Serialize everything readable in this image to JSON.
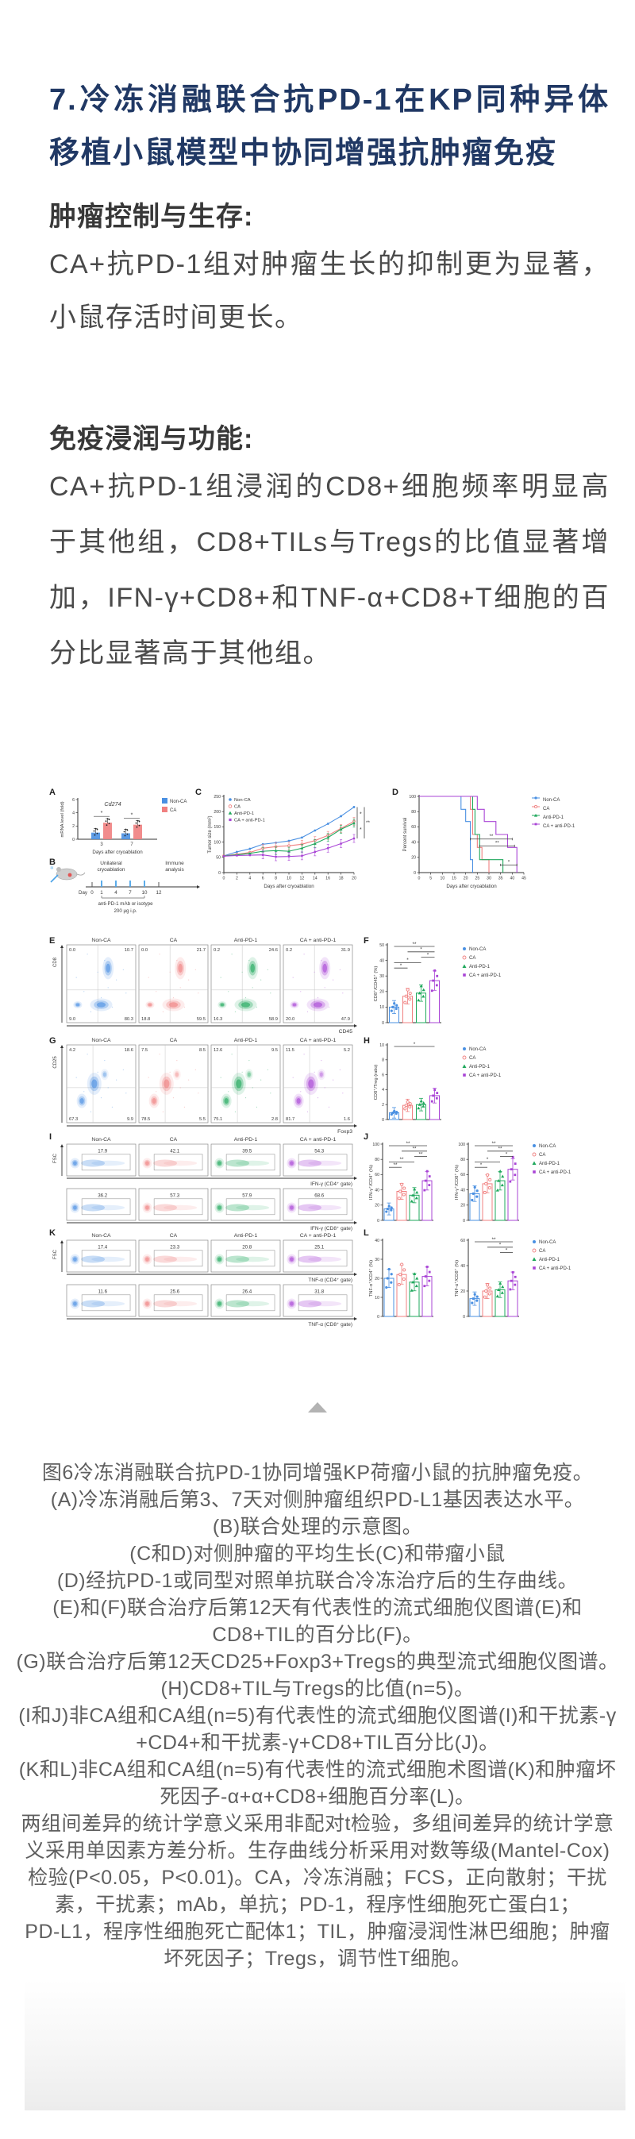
{
  "header": {
    "title": "7.冷冻消融联合抗PD-1在KP同种异体移植小鼠模型中协同增强抗肿瘤免疫"
  },
  "sections": {
    "tumor": {
      "heading": "肿瘤控制与生存:",
      "body": "CA+抗PD-1组对肿瘤生长的抑制更为显著，小鼠存活时间更长。"
    },
    "immune": {
      "heading": "免疫浸润与功能:",
      "body": "CA+抗PD-1组浸润的CD8+细胞频率明显高于其他组，CD8+TILs与Tregs的比值显著增加，IFN-γ+CD8+和TNF-α+CD8+T细胞的百分比显著高于其他组。"
    }
  },
  "caption": {
    "text": "图6冷冻消融联合抗PD-1协同增强KP荷瘤小鼠的抗肿瘤免疫。\n(A)冷冻消融后第3、7天对侧肿瘤组织PD-L1基因表达水平。\n(B)联合处理的示意图。\n(C和D)对侧肿瘤的平均生长(C)和带瘤小鼠\n(D)经抗PD-1或同型对照单抗联合冷冻治疗后的生存曲线。\n(E)和(F)联合治疗后第12天有代表性的流式细胞仪图谱(E)和\nCD8+TIL的百分比(F)。\n(G)联合治疗后第12天CD25+Foxp3+Tregs的典型流式细胞仪图谱。\n(H)CD8+TIL与Tregs的比值(n=5)。\n(I和J)非CA组和CA组(n=5)有代表性的流式细胞仪图谱(I)和干扰素-γ\n+CD4+和干扰素-γ+CD8+TIL百分比(J)。\n(K和L)非CA组和CA组(n=5)有代表性的流式细胞术图谱(K)和肿瘤坏\n死因子-α+α+CD8+细胞百分率(L)。\n两组间差异的统计学意义采用非配对t检验，多组间差异的统计学意\n义采用单因素方差分析。生存曲线分析采用对数等级(Mantel-Cox)\n检验(P<0.05，P<0.01)。CA，冷冻消融；FCS，正向散射；干扰\n素，干扰素；mAb，单抗；PD-1，程序性细胞死亡蛋白1；\nPD-L1，程序性细胞死亡配体1；TIL，肿瘤浸润性淋巴细胞；肿瘤\n坏死因子；Tregs，调节性T细胞。"
  },
  "colors": {
    "title_blue": "#203864",
    "body_gray": "#4a4a4a",
    "caption_gray": "#5f5f5f"
  },
  "chart_data": {
    "type": "multi-panel-figure",
    "columns": [
      "Non-CA",
      "CA",
      "Anti-PD-1",
      "CA + anti-PD-1"
    ],
    "groups": [
      {
        "name": "Non-CA",
        "color": "#4A90E2",
        "marker": "circle"
      },
      {
        "name": "CA",
        "color": "#F08080",
        "marker": "circle-open"
      },
      {
        "name": "Anti-PD-1",
        "color": "#1FA85C",
        "marker": "triangle"
      },
      {
        "name": "CA + anti-PD-1",
        "color": "#A944D6",
        "marker": "square"
      }
    ],
    "panelA": {
      "label": "A",
      "type": "bar",
      "title": "Cd274",
      "ylabel": "mRNA level (fold)",
      "xlabel": "Days after cryoablation",
      "ylim": [
        0,
        6
      ],
      "yticks": [
        0,
        2,
        4,
        6
      ],
      "categories": [
        "3",
        "7"
      ],
      "series": [
        {
          "name": "Non-CA",
          "values": [
            1.0,
            0.9
          ]
        },
        {
          "name": "CA",
          "values": [
            2.5,
            2.2
          ]
        }
      ],
      "sig": [
        "*",
        "*"
      ]
    },
    "panelB": {
      "label": "B",
      "texts": {
        "left_line1": "Unilateral",
        "left_line2": "cryoablation",
        "right_line1": "Immune",
        "right_line2": "analysis",
        "day": "Day",
        "days": [
          "0",
          "1",
          "4",
          "7",
          "10",
          "12"
        ],
        "note1": "anti-PD-1 mAb or isotype",
        "note2": "200 μg i.p."
      }
    },
    "panelC": {
      "label": "C",
      "type": "line",
      "ylabel": "Tumor size (mm²)",
      "xlabel": "Days after cryoablation",
      "ylim": [
        0,
        250
      ],
      "yticks": [
        0,
        50,
        100,
        150,
        200,
        250
      ],
      "xticks": [
        0,
        2,
        4,
        6,
        8,
        10,
        12,
        14,
        16,
        18,
        20
      ],
      "series": [
        {
          "name": "Non-CA",
          "values": [
            55,
            68,
            78,
            93,
            98,
            104,
            115,
            138,
            160,
            185,
            215
          ]
        },
        {
          "name": "CA",
          "values": [
            55,
            60,
            66,
            80,
            85,
            88,
            93,
            105,
            122,
            145,
            168
          ]
        },
        {
          "name": "Anti-PD-1",
          "values": [
            55,
            58,
            63,
            70,
            72,
            70,
            80,
            95,
            115,
            142,
            162
          ]
        },
        {
          "name": "CA + anti-PD-1",
          "values": [
            54,
            56,
            57,
            58,
            52,
            53,
            55,
            68,
            80,
            95,
            112
          ]
        }
      ],
      "sig": [
        "*",
        "*",
        "**"
      ]
    },
    "panelD": {
      "label": "D",
      "type": "survival-step",
      "ylabel": "Percent survival",
      "xlabel": "Days after cryoablation",
      "ylim": [
        0,
        100
      ],
      "yticks": [
        0,
        20,
        40,
        60,
        80,
        100
      ],
      "xticks": [
        0,
        5,
        10,
        15,
        20,
        25,
        30,
        35,
        40,
        45
      ],
      "series": [
        {
          "name": "Non-CA",
          "steps": [
            [
              0,
              100
            ],
            [
              18,
              100
            ],
            [
              18,
              83
            ],
            [
              20,
              83
            ],
            [
              20,
              67
            ],
            [
              22,
              67
            ],
            [
              22,
              17
            ],
            [
              23,
              17
            ],
            [
              23,
              0
            ]
          ]
        },
        {
          "name": "CA",
          "steps": [
            [
              0,
              100
            ],
            [
              22,
              100
            ],
            [
              22,
              83
            ],
            [
              23,
              83
            ],
            [
              23,
              50
            ],
            [
              25,
              50
            ],
            [
              25,
              33
            ],
            [
              27,
              33
            ],
            [
              27,
              17
            ],
            [
              30,
              17
            ],
            [
              30,
              0
            ]
          ]
        },
        {
          "name": "Anti-PD-1",
          "steps": [
            [
              0,
              100
            ],
            [
              23,
              100
            ],
            [
              23,
              83
            ],
            [
              24,
              83
            ],
            [
              24,
              50
            ],
            [
              26,
              50
            ],
            [
              26,
              17
            ],
            [
              36,
              17
            ],
            [
              36,
              0
            ]
          ]
        },
        {
          "name": "CA + anti-PD-1",
          "steps": [
            [
              0,
              100
            ],
            [
              25,
              100
            ],
            [
              25,
              83
            ],
            [
              28,
              83
            ],
            [
              28,
              67
            ],
            [
              33,
              67
            ],
            [
              33,
              50
            ],
            [
              38,
              50
            ],
            [
              38,
              33
            ],
            [
              42,
              33
            ],
            [
              42,
              0
            ]
          ]
        }
      ],
      "sig_lines": [
        {
          "x1": 22,
          "x2": 40,
          "y": 44,
          "label": "**"
        },
        {
          "x1": 26,
          "x2": 41,
          "y": 35,
          "label": "**"
        },
        {
          "x1": 35,
          "x2": 42,
          "y": 10,
          "label": "*"
        }
      ]
    },
    "panelE": {
      "label": "E",
      "type": "flow-quadrant",
      "ylabel": "CD8",
      "xlabel": "CD45",
      "quadrants": [
        [
          "0.0",
          "10.7",
          "9.0",
          "80.3"
        ],
        [
          "0.0",
          "21.7",
          "18.8",
          "59.5"
        ],
        [
          "0.2",
          "24.6",
          "16.3",
          "58.9"
        ],
        [
          "0.2",
          "31.9",
          "20.0",
          "47.9"
        ]
      ]
    },
    "panelF": {
      "label": "F",
      "type": "scatter",
      "ylabel": "CD8⁺/CD45⁺ (%)",
      "ylim": [
        0,
        50
      ],
      "yticks": [
        0,
        10,
        20,
        30,
        40,
        50
      ],
      "means": [
        10,
        17,
        19,
        27
      ],
      "sig": [
        {
          "from": 0,
          "to": 1,
          "label": "*"
        },
        {
          "from": 0,
          "to": 2,
          "label": "*"
        },
        {
          "from": 2,
          "to": 3,
          "label": "*"
        },
        {
          "from": 1,
          "to": 3,
          "label": "*"
        },
        {
          "from": 0,
          "to": 3,
          "label": "**"
        }
      ]
    },
    "panelG": {
      "label": "G",
      "type": "flow-quadrant",
      "ylabel": "CD25",
      "xlabel": "Foxp3",
      "quadrants": [
        [
          "4.2",
          "18.6",
          "67.3",
          "9.9"
        ],
        [
          "7.5",
          "8.5",
          "78.5",
          "5.5"
        ],
        [
          "12.6",
          "9.5",
          "75.1",
          "2.8"
        ],
        [
          "11.5",
          "5.2",
          "81.7",
          "1.6"
        ]
      ]
    },
    "panelH": {
      "label": "H",
      "type": "scatter",
      "ylabel": "CD8⁺/Treg (ratio)",
      "ylim": [
        0,
        10
      ],
      "yticks": [
        0,
        2,
        4,
        6,
        8,
        10
      ],
      "means": [
        0.9,
        1.9,
        2.0,
        3.2
      ],
      "sig": [
        {
          "from": 0,
          "to": 3,
          "label": "*"
        }
      ]
    },
    "panelI": {
      "label": "I",
      "type": "flow-gate",
      "ylabel": "FSC",
      "rows": [
        {
          "xlabel": "IFN-γ (CD4⁺ gate)",
          "values": [
            "17.9",
            "42.1",
            "39.5",
            "54.3"
          ]
        },
        {
          "xlabel": "IFN-γ (CD8⁺ gate)",
          "values": [
            "36.2",
            "57.3",
            "57.9",
            "68.6"
          ]
        }
      ]
    },
    "panelJ": {
      "label": "J",
      "charts": [
        {
          "type": "scatter",
          "ylabel": "IFN-γ⁺/CD4⁺ (%)",
          "ylim": [
            0,
            100
          ],
          "yticks": [
            0,
            20,
            40,
            60,
            80,
            100
          ],
          "means": [
            15,
            38,
            33,
            52
          ],
          "sig": [
            {
              "from": 0,
              "to": 1,
              "label": "**"
            },
            {
              "from": 0,
              "to": 2,
              "label": "**"
            },
            {
              "from": 2,
              "to": 3,
              "label": "**"
            },
            {
              "from": 1,
              "to": 3,
              "label": "**"
            },
            {
              "from": 0,
              "to": 3,
              "label": "**"
            }
          ]
        },
        {
          "type": "scatter",
          "ylabel": "IFN-γ⁺/CD8⁺ (%)",
          "ylim": [
            0,
            100
          ],
          "yticks": [
            0,
            20,
            40,
            60,
            80,
            100
          ],
          "means": [
            35,
            48,
            52,
            67
          ],
          "sig": [
            {
              "from": 0,
              "to": 1,
              "label": "*"
            },
            {
              "from": 0,
              "to": 2,
              "label": "*"
            },
            {
              "from": 2,
              "to": 3,
              "label": "*"
            },
            {
              "from": 1,
              "to": 3,
              "label": "**"
            },
            {
              "from": 0,
              "to": 3,
              "label": "**"
            }
          ]
        }
      ]
    },
    "panelK": {
      "label": "K",
      "type": "flow-gate",
      "ylabel": "FSC",
      "rows": [
        {
          "xlabel": "TNF-α (CD4⁺ gate)",
          "values": [
            "17.4",
            "23.3",
            "20.8",
            "25.1"
          ]
        },
        {
          "xlabel": "TNF-α (CD8⁺ gate)",
          "values": [
            "11.6",
            "25.6",
            "26.4",
            "31.8"
          ]
        }
      ]
    },
    "panelL": {
      "label": "L",
      "charts": [
        {
          "type": "scatter",
          "ylabel": "TNF-α⁺/CD4⁺ (%)",
          "ylim": [
            0,
            40
          ],
          "yticks": [
            0,
            10,
            20,
            30,
            40
          ],
          "means": [
            20,
            22,
            18,
            21
          ],
          "sig": []
        },
        {
          "type": "scatter",
          "ylabel": "TNF-α⁺/CD8⁺ (%)",
          "ylim": [
            0,
            60
          ],
          "yticks": [
            0,
            20,
            40,
            60
          ],
          "means": [
            14,
            20,
            21,
            28
          ],
          "sig": [
            {
              "from": 2,
              "to": 3,
              "label": "*"
            },
            {
              "from": 1,
              "to": 3,
              "label": "*"
            },
            {
              "from": 0,
              "to": 3,
              "label": "**"
            }
          ]
        }
      ]
    }
  }
}
